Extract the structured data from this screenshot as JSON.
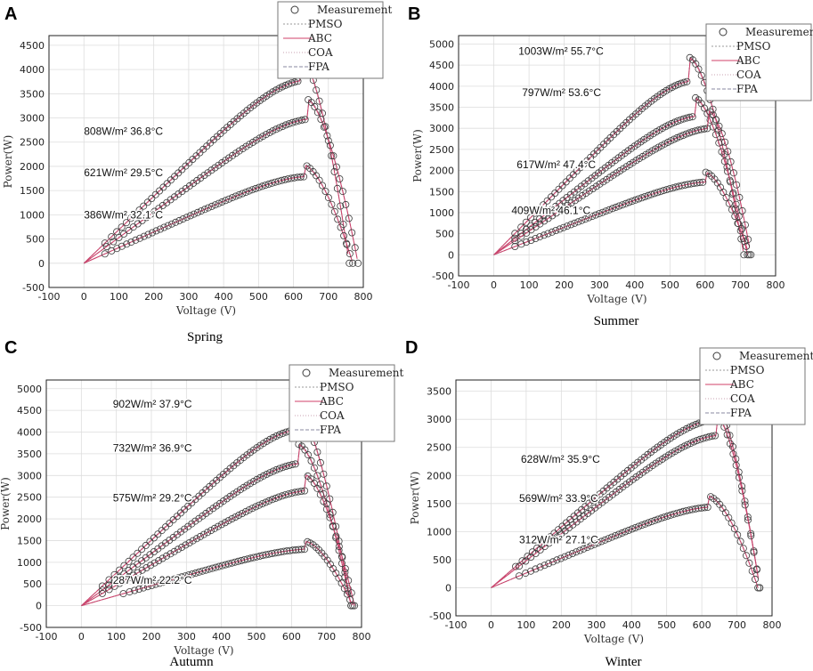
{
  "figure": {
    "colors": {
      "measurement": "#3a3a3a",
      "pmso": "#9a9a9a",
      "abc": "#d0406a",
      "coa": "#c8a0b0",
      "fpa": "#8a8aa0"
    }
  },
  "chart_data": [
    {
      "panel": "A",
      "season": "Spring",
      "type": "scatter",
      "xlabel": "Voltage (V)",
      "ylabel": "Power(W)",
      "xlim": [
        -100,
        800
      ],
      "ylim": [
        -500,
        4700
      ],
      "xticks": [
        -100,
        0,
        100,
        200,
        300,
        400,
        500,
        600,
        700,
        800
      ],
      "yticks": [
        -500,
        0,
        500,
        1000,
        1500,
        2000,
        2500,
        3000,
        3500,
        4000,
        4500
      ],
      "legend": [
        "Measurement",
        "PMSO",
        "ABC",
        "COA",
        "FPA"
      ],
      "series": [
        {
          "name": "808W/m2 36.8°C",
          "vmp": 620,
          "pmp": 4280,
          "voc": 760,
          "vstart": 60
        },
        {
          "name": "621W/m2 29.5°C",
          "vmp": 640,
          "pmp": 3380,
          "voc": 785,
          "vstart": 65
        },
        {
          "name": "386W/m2 32.1°C",
          "vmp": 630,
          "pmp": 2030,
          "voc": 770,
          "vstart": 60
        }
      ],
      "annotations": [
        {
          "text": "808W/m² 36.8°C",
          "x": 0,
          "y": 2650
        },
        {
          "text": "621W/m² 29.5°C",
          "x": 0,
          "y": 1800
        },
        {
          "text": "386W/m² 32.1°C",
          "x": 0,
          "y": 920
        }
      ]
    },
    {
      "panel": "B",
      "season": "Summer",
      "type": "scatter",
      "xlabel": "Voltage (V)",
      "ylabel": "Power(W)",
      "xlim": [
        -100,
        800
      ],
      "ylim": [
        -500,
        5200
      ],
      "xticks": [
        -100,
        0,
        100,
        200,
        300,
        400,
        500,
        600,
        700,
        800
      ],
      "yticks": [
        -500,
        0,
        500,
        1000,
        1500,
        2000,
        2500,
        3000,
        3500,
        4000,
        4500,
        5000
      ],
      "legend": [
        "Measurement",
        "PMSO",
        "ABC",
        "COA",
        "FPA"
      ],
      "series": [
        {
          "name": "1003W/m2 55.7°C",
          "vmp": 555,
          "pmp": 4680,
          "voc": 710,
          "vstart": 60
        },
        {
          "name": "797W/m2 53.6°C",
          "vmp": 570,
          "pmp": 3730,
          "voc": 720,
          "vstart": 60
        },
        {
          "name": "617W/m2 47.4°C",
          "vmp": 610,
          "pmp": 3410,
          "voc": 730,
          "vstart": 60
        },
        {
          "name": "409W/m2 46.1°C",
          "vmp": 600,
          "pmp": 1960,
          "voc": 725,
          "vstart": 60
        }
      ],
      "annotations": [
        {
          "text": "1003W/m² 55.7°C",
          "x": 70,
          "y": 4750
        },
        {
          "text": "797W/m² 53.6°C",
          "x": 80,
          "y": 3760
        },
        {
          "text": "617W/m² 47.4°C",
          "x": 65,
          "y": 2050
        },
        {
          "text": "409W/m² 46.1°C",
          "x": 50,
          "y": 970
        }
      ]
    },
    {
      "panel": "C",
      "season": "Autumn",
      "type": "scatter",
      "xlabel": "Voltage (V)",
      "ylabel": "Power(W)",
      "xlim": [
        -100,
        800
      ],
      "ylim": [
        -500,
        5200
      ],
      "xticks": [
        -100,
        0,
        100,
        200,
        300,
        400,
        500,
        600,
        700,
        800
      ],
      "yticks": [
        -500,
        0,
        500,
        1000,
        1500,
        2000,
        2500,
        3000,
        3500,
        4000,
        4500,
        5000
      ],
      "legend": [
        "Measurement",
        "PMSO",
        "ABC",
        "COA",
        "FPA"
      ],
      "series": [
        {
          "name": "902W/m2 37.9°C",
          "vmp": 610,
          "pmp": 4600,
          "voc": 770,
          "vstart": 60
        },
        {
          "name": "732W/m2 36.9°C",
          "vmp": 620,
          "pmp": 3720,
          "voc": 770,
          "vstart": 60
        },
        {
          "name": "575W/m2 29.2°C",
          "vmp": 640,
          "pmp": 3010,
          "voc": 780,
          "vstart": 60
        },
        {
          "name": "287W/m2 22.2°C",
          "vmp": 640,
          "pmp": 1480,
          "voc": 775,
          "vstart": 120
        }
      ],
      "annotations": [
        {
          "text": "902W/m² 37.9°C",
          "x": 90,
          "y": 4560
        },
        {
          "text": "732W/m² 36.9°C",
          "x": 90,
          "y": 3550
        },
        {
          "text": "575W/m² 29.2°C",
          "x": 90,
          "y": 2400
        },
        {
          "text": "287W/m² 22.2°C",
          "x": 90,
          "y": 500
        }
      ]
    },
    {
      "panel": "D",
      "season": "Winter",
      "type": "scatter",
      "xlabel": "Voltage (V)",
      "ylabel": "Power(W)",
      "xlim": [
        -100,
        800
      ],
      "ylim": [
        -500,
        3700
      ],
      "xticks": [
        -100,
        0,
        100,
        200,
        300,
        400,
        500,
        600,
        700,
        800
      ],
      "yticks": [
        -500,
        0,
        500,
        1000,
        1500,
        2000,
        2500,
        3000,
        3500
      ],
      "legend": [
        "Measurement",
        "PMSO",
        "ABC",
        "COA",
        "FPA"
      ],
      "series": [
        {
          "name": "628W/m2 35.9°C",
          "vmp": 630,
          "pmp": 3400,
          "voc": 765,
          "vstart": 70
        },
        {
          "name": "569W/m2 33.9°C",
          "vmp": 640,
          "pmp": 3080,
          "voc": 765,
          "vstart": 80
        },
        {
          "name": "312W/m2 27.1°C",
          "vmp": 620,
          "pmp": 1630,
          "voc": 760,
          "vstart": 80
        }
      ],
      "annotations": [
        {
          "text": "628W/m² 35.9°C",
          "x": 85,
          "y": 2230
        },
        {
          "text": "569W/m² 33.9°C",
          "x": 80,
          "y": 1530
        },
        {
          "text": "312W/m² 27.1°C",
          "x": 80,
          "y": 790
        }
      ]
    }
  ]
}
